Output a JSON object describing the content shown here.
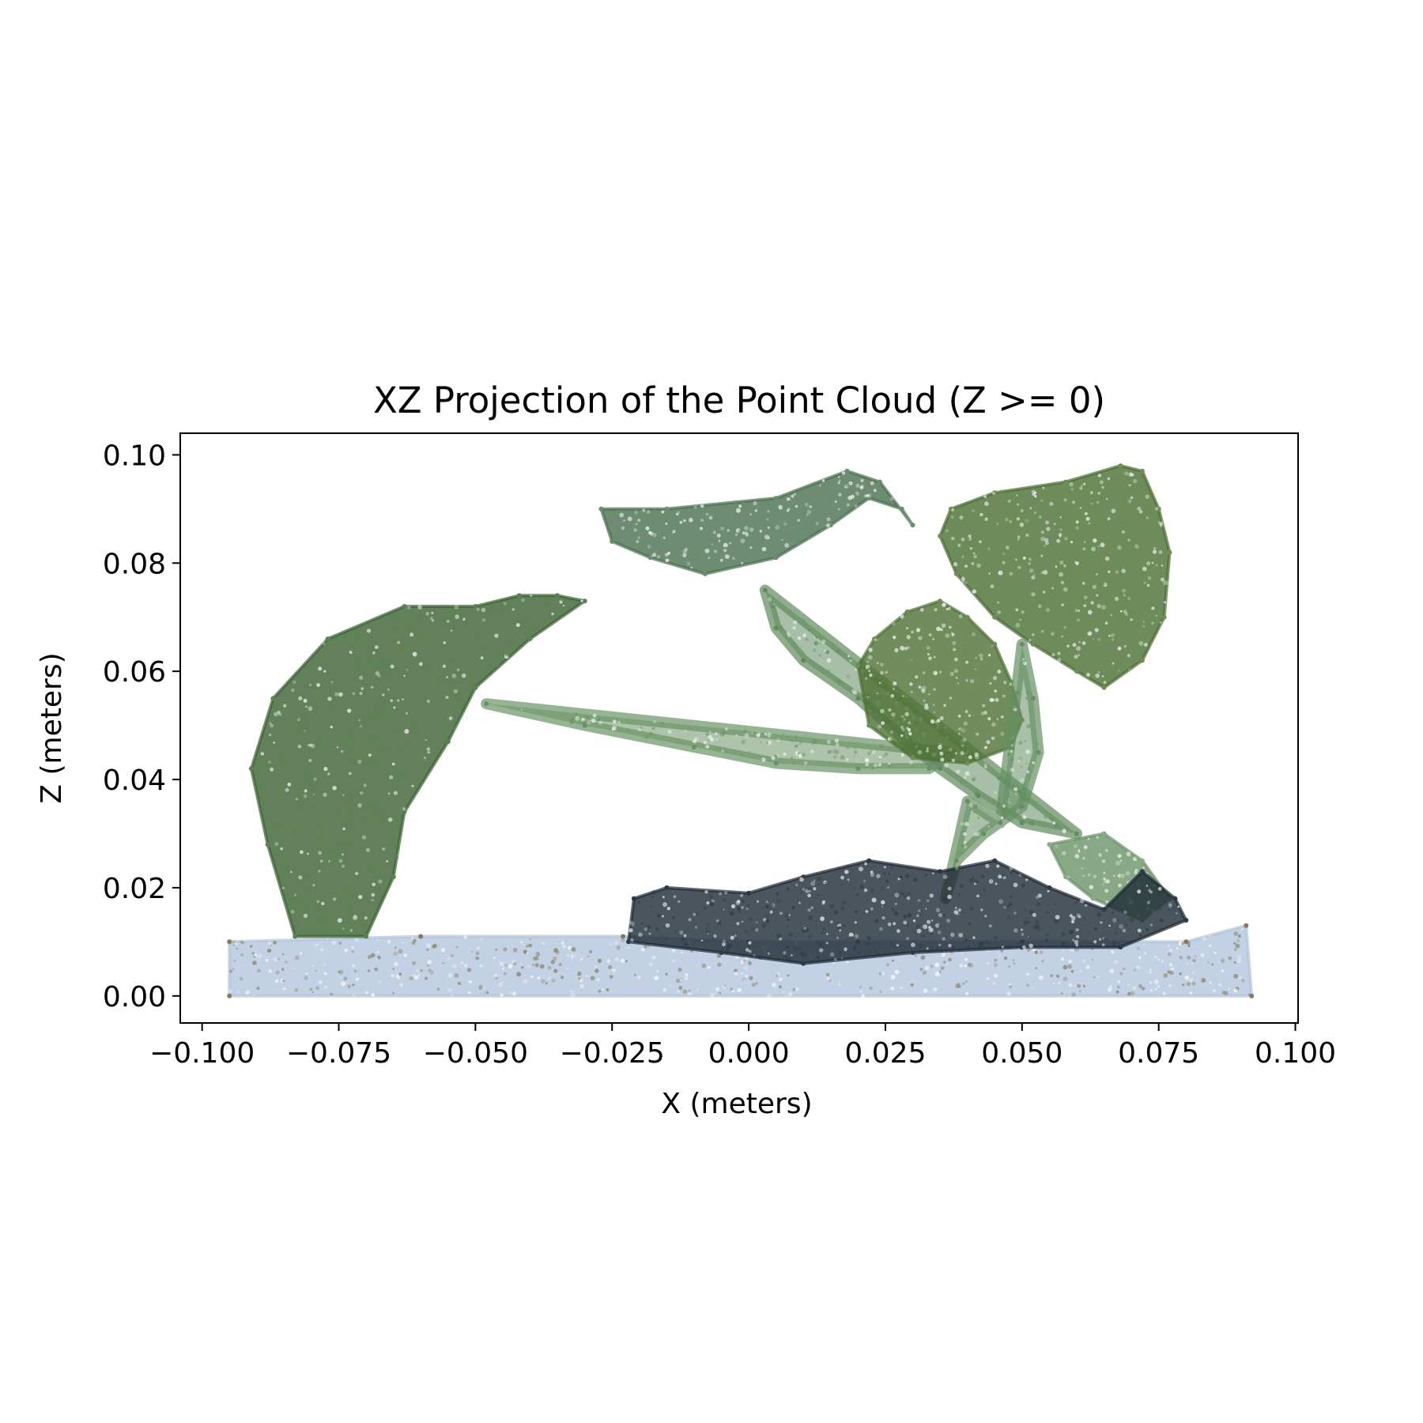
{
  "chart_data": {
    "type": "scatter",
    "title": "XZ Projection of the Point Cloud (Z >= 0)",
    "xlabel": "X (meters)",
    "ylabel": "Z (meters)",
    "xlim": [
      -0.104,
      0.1005
    ],
    "ylim": [
      -0.005,
      0.104
    ],
    "grid": false,
    "legend": "none",
    "x_ticks": [
      {
        "value": -0.1,
        "label": "−0.100"
      },
      {
        "value": -0.075,
        "label": "−0.075"
      },
      {
        "value": -0.05,
        "label": "−0.050"
      },
      {
        "value": -0.025,
        "label": "−0.025"
      },
      {
        "value": 0.0,
        "label": "0.000"
      },
      {
        "value": 0.025,
        "label": "0.025"
      },
      {
        "value": 0.05,
        "label": "0.050"
      },
      {
        "value": 0.075,
        "label": "0.075"
      },
      {
        "value": 0.1,
        "label": "0.100"
      }
    ],
    "y_ticks": [
      {
        "value": 0.0,
        "label": "0.00"
      },
      {
        "value": 0.02,
        "label": "0.02"
      },
      {
        "value": 0.04,
        "label": "0.04"
      },
      {
        "value": 0.06,
        "label": "0.06"
      },
      {
        "value": 0.08,
        "label": "0.08"
      },
      {
        "value": 0.1,
        "label": "0.10"
      }
    ],
    "series": [
      {
        "name": "ground-layer",
        "color": "#b3c6dc",
        "alt_color": "#857b5f",
        "points": [
          [
            -0.095,
            0.0
          ],
          [
            -0.095,
            0.01
          ],
          [
            -0.06,
            0.011
          ],
          [
            -0.023,
            0.011
          ],
          [
            0.0,
            0.01
          ],
          [
            0.02,
            0.01
          ],
          [
            0.05,
            0.01
          ],
          [
            0.08,
            0.01
          ],
          [
            0.091,
            0.013
          ],
          [
            0.092,
            0.0
          ]
        ]
      },
      {
        "name": "left-leaf",
        "color": "#3b6232",
        "alt_color": "#5a8252",
        "points": [
          [
            -0.083,
            0.011
          ],
          [
            -0.088,
            0.028
          ],
          [
            -0.091,
            0.042
          ],
          [
            -0.087,
            0.055
          ],
          [
            -0.077,
            0.066
          ],
          [
            -0.063,
            0.072
          ],
          [
            -0.05,
            0.072
          ],
          [
            -0.042,
            0.074
          ],
          [
            -0.035,
            0.074
          ],
          [
            -0.03,
            0.073
          ],
          [
            -0.04,
            0.066
          ],
          [
            -0.05,
            0.057
          ],
          [
            -0.055,
            0.047
          ],
          [
            -0.063,
            0.034
          ],
          [
            -0.065,
            0.022
          ],
          [
            -0.07,
            0.011
          ]
        ]
      },
      {
        "name": "left-stem",
        "color": "#6a9365",
        "points": [
          [
            -0.048,
            0.054
          ],
          [
            -0.03,
            0.05
          ],
          [
            -0.01,
            0.046
          ],
          [
            0.005,
            0.043
          ],
          [
            0.02,
            0.042
          ],
          [
            0.033,
            0.042
          ],
          [
            0.037,
            0.045
          ]
        ]
      },
      {
        "name": "top-leaf",
        "color": "#4a6f4f",
        "alt_color": "#6a8f70",
        "points": [
          [
            -0.027,
            0.09
          ],
          [
            -0.025,
            0.084
          ],
          [
            -0.018,
            0.081
          ],
          [
            -0.008,
            0.078
          ],
          [
            0.005,
            0.081
          ],
          [
            0.015,
            0.087
          ],
          [
            0.022,
            0.092
          ],
          [
            0.028,
            0.09
          ],
          [
            0.03,
            0.087
          ],
          [
            0.024,
            0.095
          ],
          [
            0.018,
            0.097
          ],
          [
            0.005,
            0.092
          ],
          [
            -0.015,
            0.09
          ]
        ]
      },
      {
        "name": "center-stem",
        "color": "#5f8a5d",
        "points": [
          [
            0.003,
            0.075
          ],
          [
            0.005,
            0.068
          ],
          [
            0.01,
            0.062
          ],
          [
            0.02,
            0.055
          ],
          [
            0.03,
            0.046
          ],
          [
            0.035,
            0.042
          ],
          [
            0.042,
            0.037
          ],
          [
            0.05,
            0.032
          ],
          [
            0.06,
            0.03
          ]
        ]
      },
      {
        "name": "right-upper-leaf",
        "color": "#4a6e32",
        "alt_color": "#6f8e55",
        "points": [
          [
            0.035,
            0.085
          ],
          [
            0.037,
            0.09
          ],
          [
            0.045,
            0.093
          ],
          [
            0.058,
            0.095
          ],
          [
            0.068,
            0.098
          ],
          [
            0.072,
            0.097
          ],
          [
            0.075,
            0.09
          ],
          [
            0.077,
            0.082
          ],
          [
            0.076,
            0.07
          ],
          [
            0.072,
            0.062
          ],
          [
            0.065,
            0.057
          ],
          [
            0.06,
            0.06
          ],
          [
            0.052,
            0.065
          ],
          [
            0.045,
            0.07
          ],
          [
            0.038,
            0.078
          ]
        ]
      },
      {
        "name": "right-middle-leaf",
        "color": "#4e7035",
        "alt_color": "#6f8e55",
        "points": [
          [
            0.02,
            0.061
          ],
          [
            0.023,
            0.066
          ],
          [
            0.029,
            0.071
          ],
          [
            0.035,
            0.073
          ],
          [
            0.04,
            0.07
          ],
          [
            0.045,
            0.065
          ],
          [
            0.048,
            0.058
          ],
          [
            0.05,
            0.051
          ],
          [
            0.048,
            0.046
          ],
          [
            0.04,
            0.043
          ],
          [
            0.03,
            0.044
          ],
          [
            0.022,
            0.05
          ]
        ]
      },
      {
        "name": "right-stems",
        "color": "#658e62",
        "points": [
          [
            0.05,
            0.065
          ],
          [
            0.052,
            0.055
          ],
          [
            0.053,
            0.045
          ],
          [
            0.05,
            0.035
          ],
          [
            0.043,
            0.03
          ],
          [
            0.038,
            0.025
          ],
          [
            0.036,
            0.018
          ],
          [
            0.04,
            0.036
          ],
          [
            0.046,
            0.032
          ]
        ]
      },
      {
        "name": "small-right-leaf",
        "color": "#6c9368",
        "alt_color": "#8aab86",
        "points": [
          [
            0.055,
            0.028
          ],
          [
            0.065,
            0.03
          ],
          [
            0.072,
            0.025
          ],
          [
            0.077,
            0.018
          ],
          [
            0.072,
            0.014
          ],
          [
            0.063,
            0.018
          ],
          [
            0.058,
            0.022
          ]
        ]
      },
      {
        "name": "dark-object",
        "color": "#1e2a35",
        "alt_color": "#2a3a46",
        "points": [
          [
            -0.022,
            0.01
          ],
          [
            -0.021,
            0.018
          ],
          [
            -0.015,
            0.02
          ],
          [
            0.0,
            0.019
          ],
          [
            0.01,
            0.022
          ],
          [
            0.022,
            0.025
          ],
          [
            0.035,
            0.023
          ],
          [
            0.045,
            0.025
          ],
          [
            0.055,
            0.02
          ],
          [
            0.065,
            0.016
          ],
          [
            0.072,
            0.023
          ],
          [
            0.078,
            0.018
          ],
          [
            0.08,
            0.014
          ],
          [
            0.068,
            0.009
          ],
          [
            0.05,
            0.009
          ],
          [
            0.03,
            0.008
          ],
          [
            0.01,
            0.006
          ],
          [
            -0.005,
            0.008
          ]
        ]
      }
    ]
  }
}
